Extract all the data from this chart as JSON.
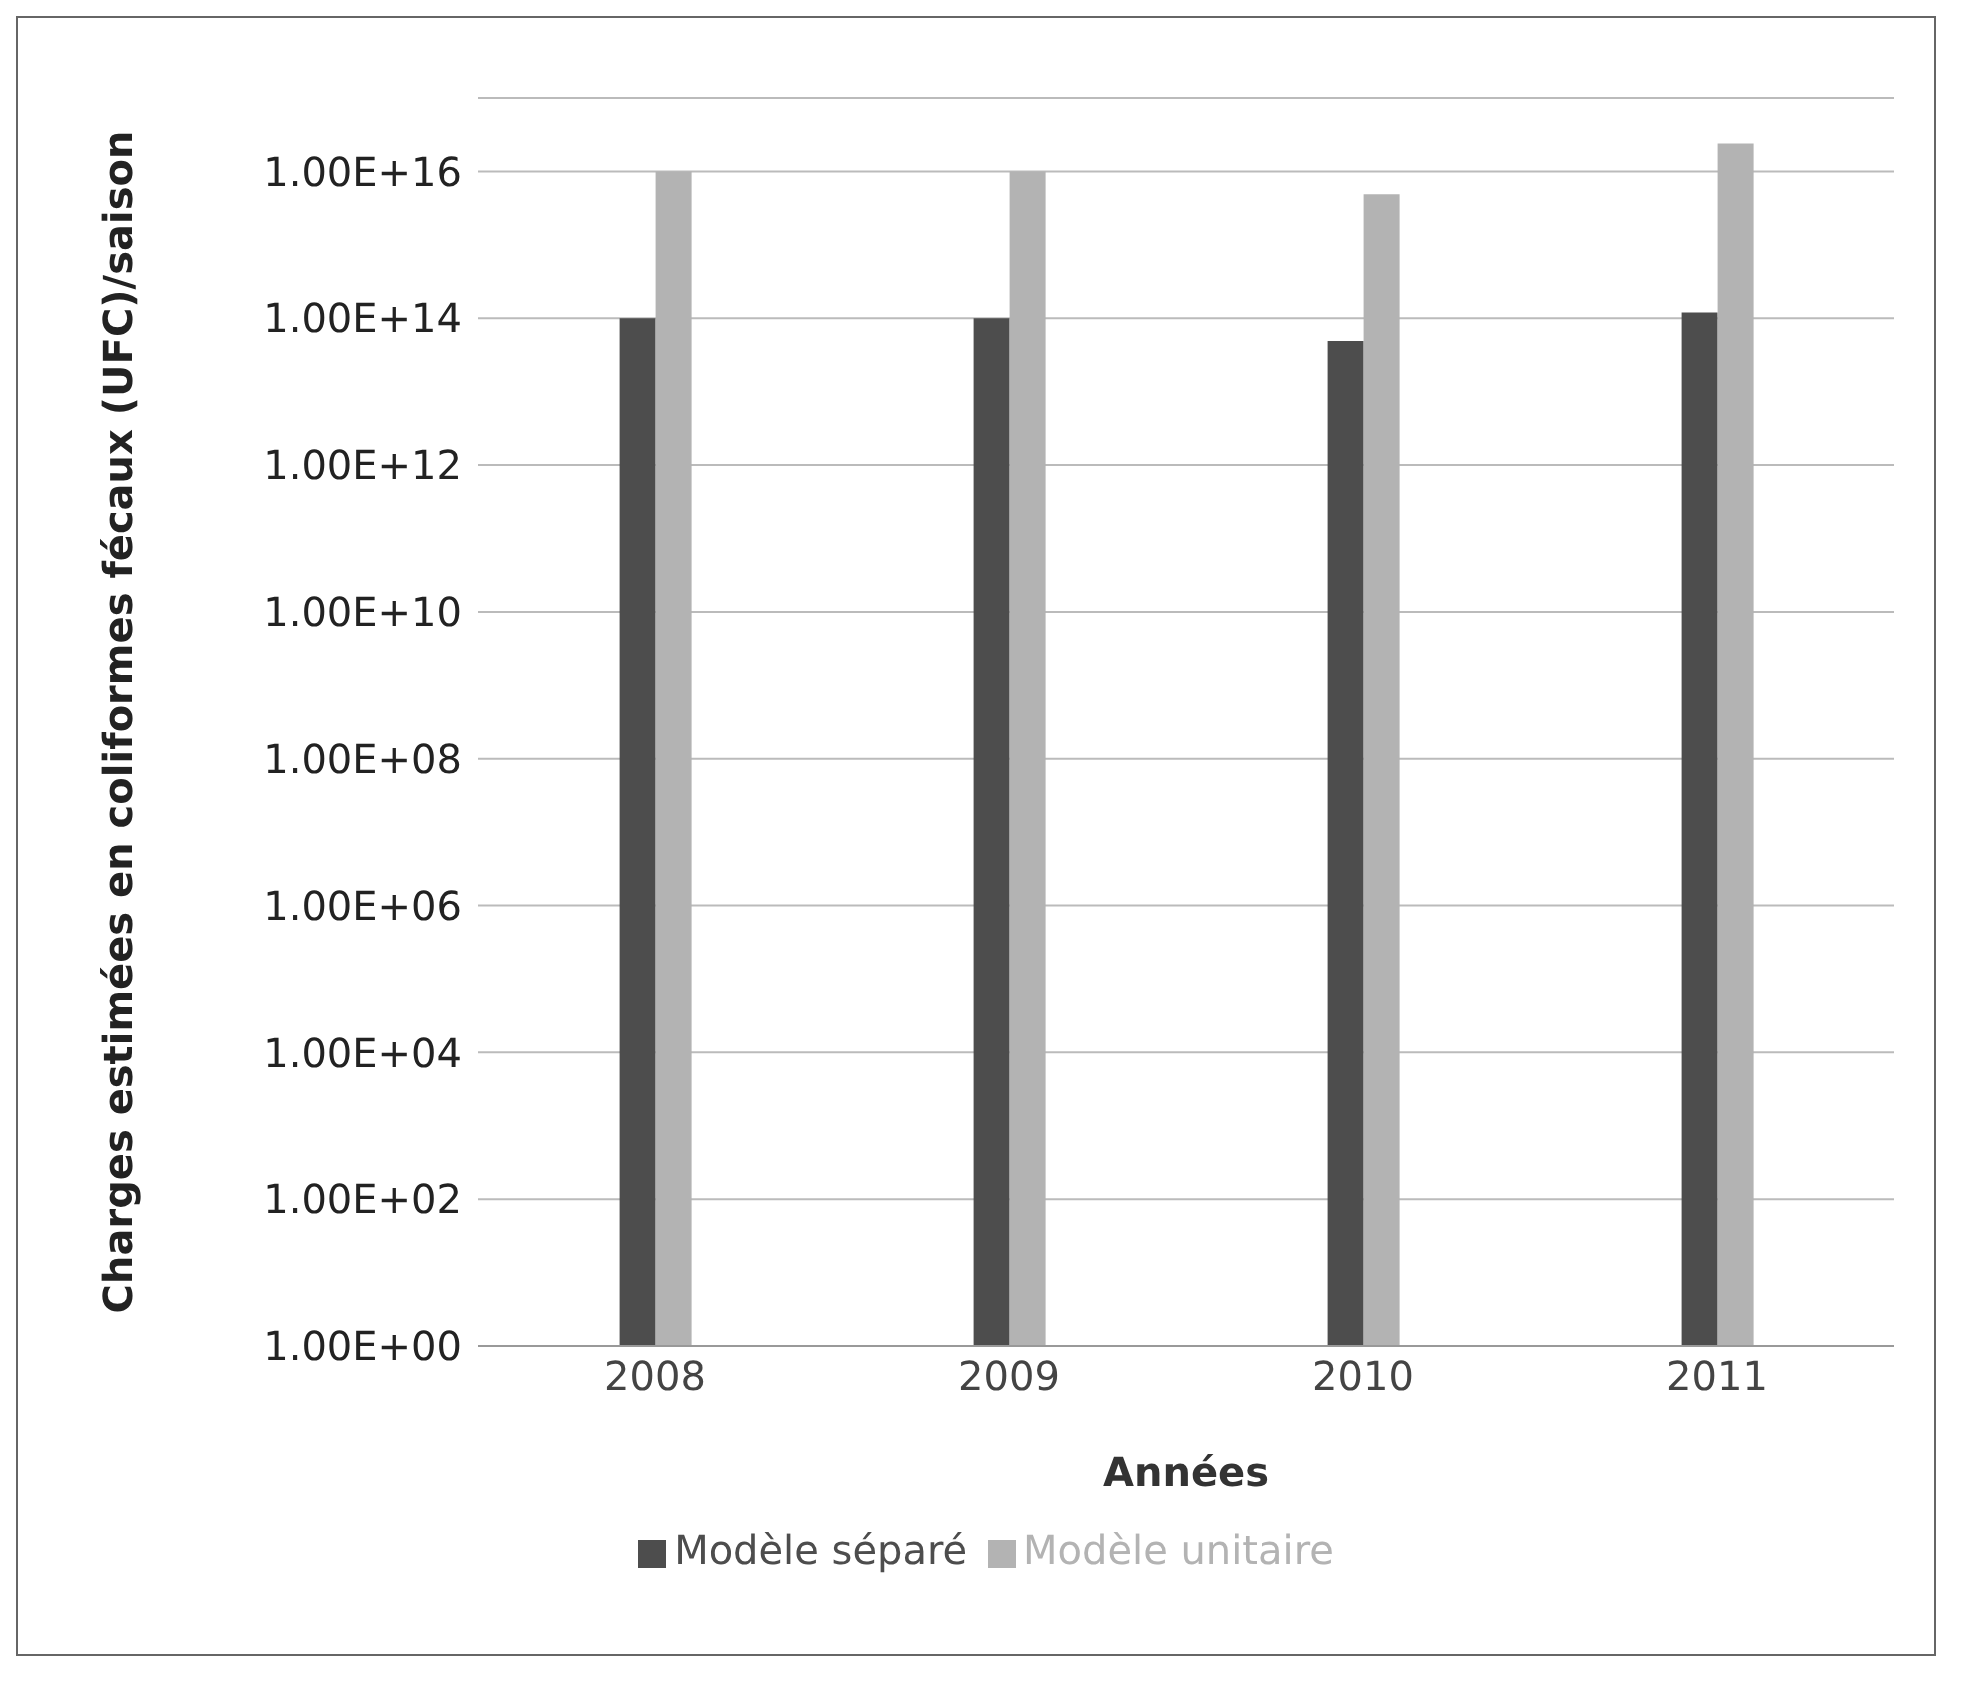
{
  "chart_data": {
    "type": "bar",
    "xlabel": "Années",
    "ylabel": "Charges estimées en coliformes fécaux (UFC)/saison",
    "categories": [
      "2008",
      "2009",
      "2010",
      "2011"
    ],
    "series": [
      {
        "name": "Modèle séparé",
        "color": "#4d4d4d",
        "values": [
          100000000000000.0,
          100000000000000.0,
          49000000000000.0,
          120000000000000.0
        ]
      },
      {
        "name": "Modèle unitaire",
        "color": "#b3b3b3",
        "values": [
          1e+16,
          1e+16,
          4900000000000000.0,
          2.4e+16
        ]
      }
    ],
    "log": "y",
    "ylim": [
      1,
      1e+17
    ],
    "yticks": [
      {
        "value": 1,
        "label": "1.00E+00"
      },
      {
        "value": 100,
        "label": "1.00E+02"
      },
      {
        "value": 10000,
        "label": "1.00E+04"
      },
      {
        "value": 1000000,
        "label": "1.00E+06"
      },
      {
        "value": 100000000,
        "label": "1.00E+08"
      },
      {
        "value": 10000000000,
        "label": "1.00E+10"
      },
      {
        "value": 1000000000000,
        "label": "1.00E+12"
      },
      {
        "value": 100000000000000,
        "label": "1.00E+14"
      },
      {
        "value": 10000000000000000,
        "label": "1.00E+16"
      }
    ],
    "grid": "y",
    "legend": "bottom"
  }
}
